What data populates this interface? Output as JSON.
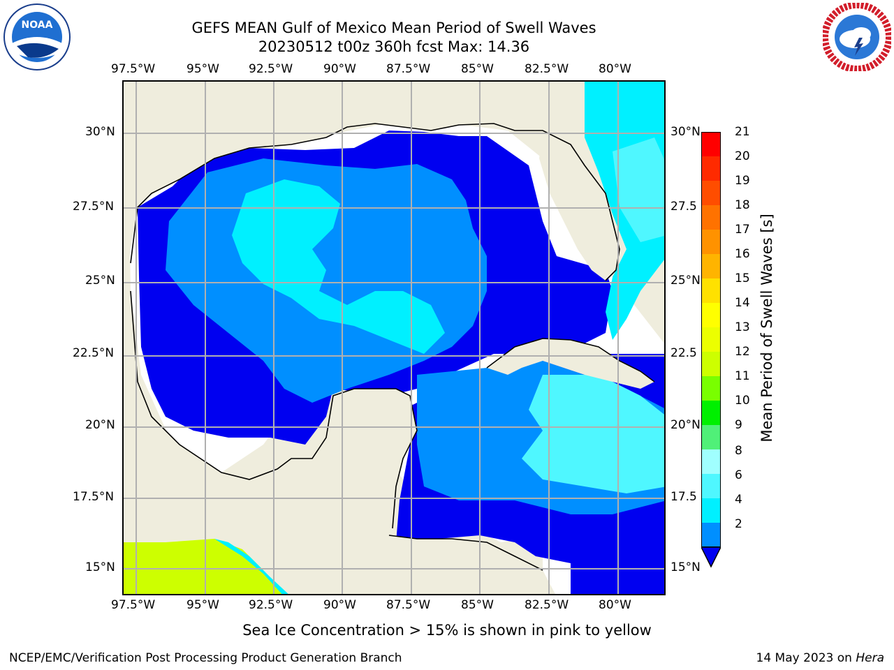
{
  "title_line1": "GEFS MEAN Gulf of Mexico Mean Period of Swell Waves",
  "title_line2": "20230512 t00z 360h fcst   Max: 14.36",
  "x_ticks": [
    "97.5°W",
    "95°W",
    "92.5°W",
    "90°W",
    "87.5°W",
    "85°W",
    "82.5°W",
    "80°W"
  ],
  "y_ticks": [
    "30°N",
    "27.5°N",
    "25°N",
    "22.5°N",
    "20°N",
    "17.5°N",
    "15°N"
  ],
  "y_ticks_right": [
    "30°N",
    "27.5",
    "25°N",
    "22.5",
    "20°N",
    "17.5",
    "15°N"
  ],
  "colorbar": {
    "title": "Mean Period of Swell Waves [s]",
    "labels": [
      "21",
      "20",
      "19",
      "18",
      "17",
      "16",
      "15",
      "14",
      "13",
      "12",
      "11",
      "10",
      "9",
      "8",
      "6",
      "4",
      "2"
    ],
    "colors": [
      "#ff0000",
      "#ff2a00",
      "#ff4d00",
      "#ff7200",
      "#ff9200",
      "#ffb400",
      "#ffe100",
      "#ffff00",
      "#ecff00",
      "#cdff00",
      "#79ff00",
      "#00e600",
      "#00f000",
      "#50f078",
      "#a0ffff",
      "#4ff7ff",
      "#00f0ff",
      "#008fff",
      "#0000f0"
    ]
  },
  "colors": {
    "land": "#efeddd",
    "sea_dark": "#0000f0",
    "sea_mid": "#008fff",
    "sea_cyan": "#00f0ff",
    "sea_light": "#4ff7ff",
    "green_yellow": "#cdff00"
  },
  "footer_center": "Sea Ice Concentration > 15% is shown in pink to yellow",
  "footer_left": "NCEP/EMC/Verification Post Processing Product Generation Branch",
  "footer_right_date": "14 May 2023 on ",
  "footer_right_host": "Hera",
  "logo_left": "NOAA",
  "logo_right": "NATIONAL WEATHER SERVICE"
}
